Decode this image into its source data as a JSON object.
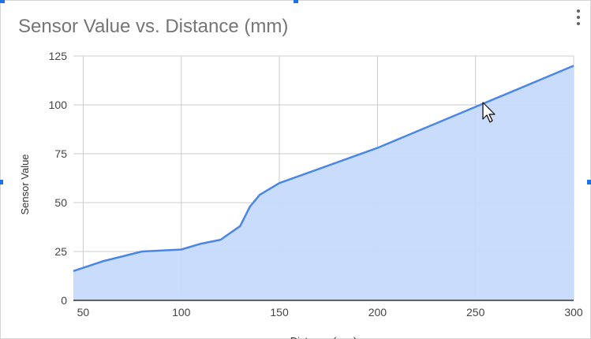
{
  "colors": {
    "line": "#4a86e8",
    "area": "#c6dafc",
    "grid": "#cccccc",
    "axis": "#333333",
    "selection_handle": "#1a73e8"
  },
  "icons": {
    "menu": "vertical-ellipsis-icon",
    "cursor": "mouse-pointer-icon"
  },
  "chart_data": {
    "type": "area",
    "title": "Sensor Value vs. Distance (mm)",
    "xlabel": "Distance (mm)",
    "ylabel": "Sensor Value",
    "xlim": [
      45,
      300
    ],
    "ylim": [
      0,
      125
    ],
    "x_ticks": [
      50,
      100,
      150,
      200,
      250,
      300
    ],
    "y_ticks": [
      0,
      25,
      50,
      75,
      100,
      125
    ],
    "grid": true,
    "legend": "none",
    "series": [
      {
        "x": [
          45,
          60,
          80,
          100,
          110,
          120,
          130,
          135,
          140,
          150,
          200,
          250,
          300
        ],
        "values": [
          15,
          20,
          25,
          26,
          29,
          31,
          38,
          48,
          54,
          60,
          78,
          99,
          120
        ]
      }
    ]
  }
}
